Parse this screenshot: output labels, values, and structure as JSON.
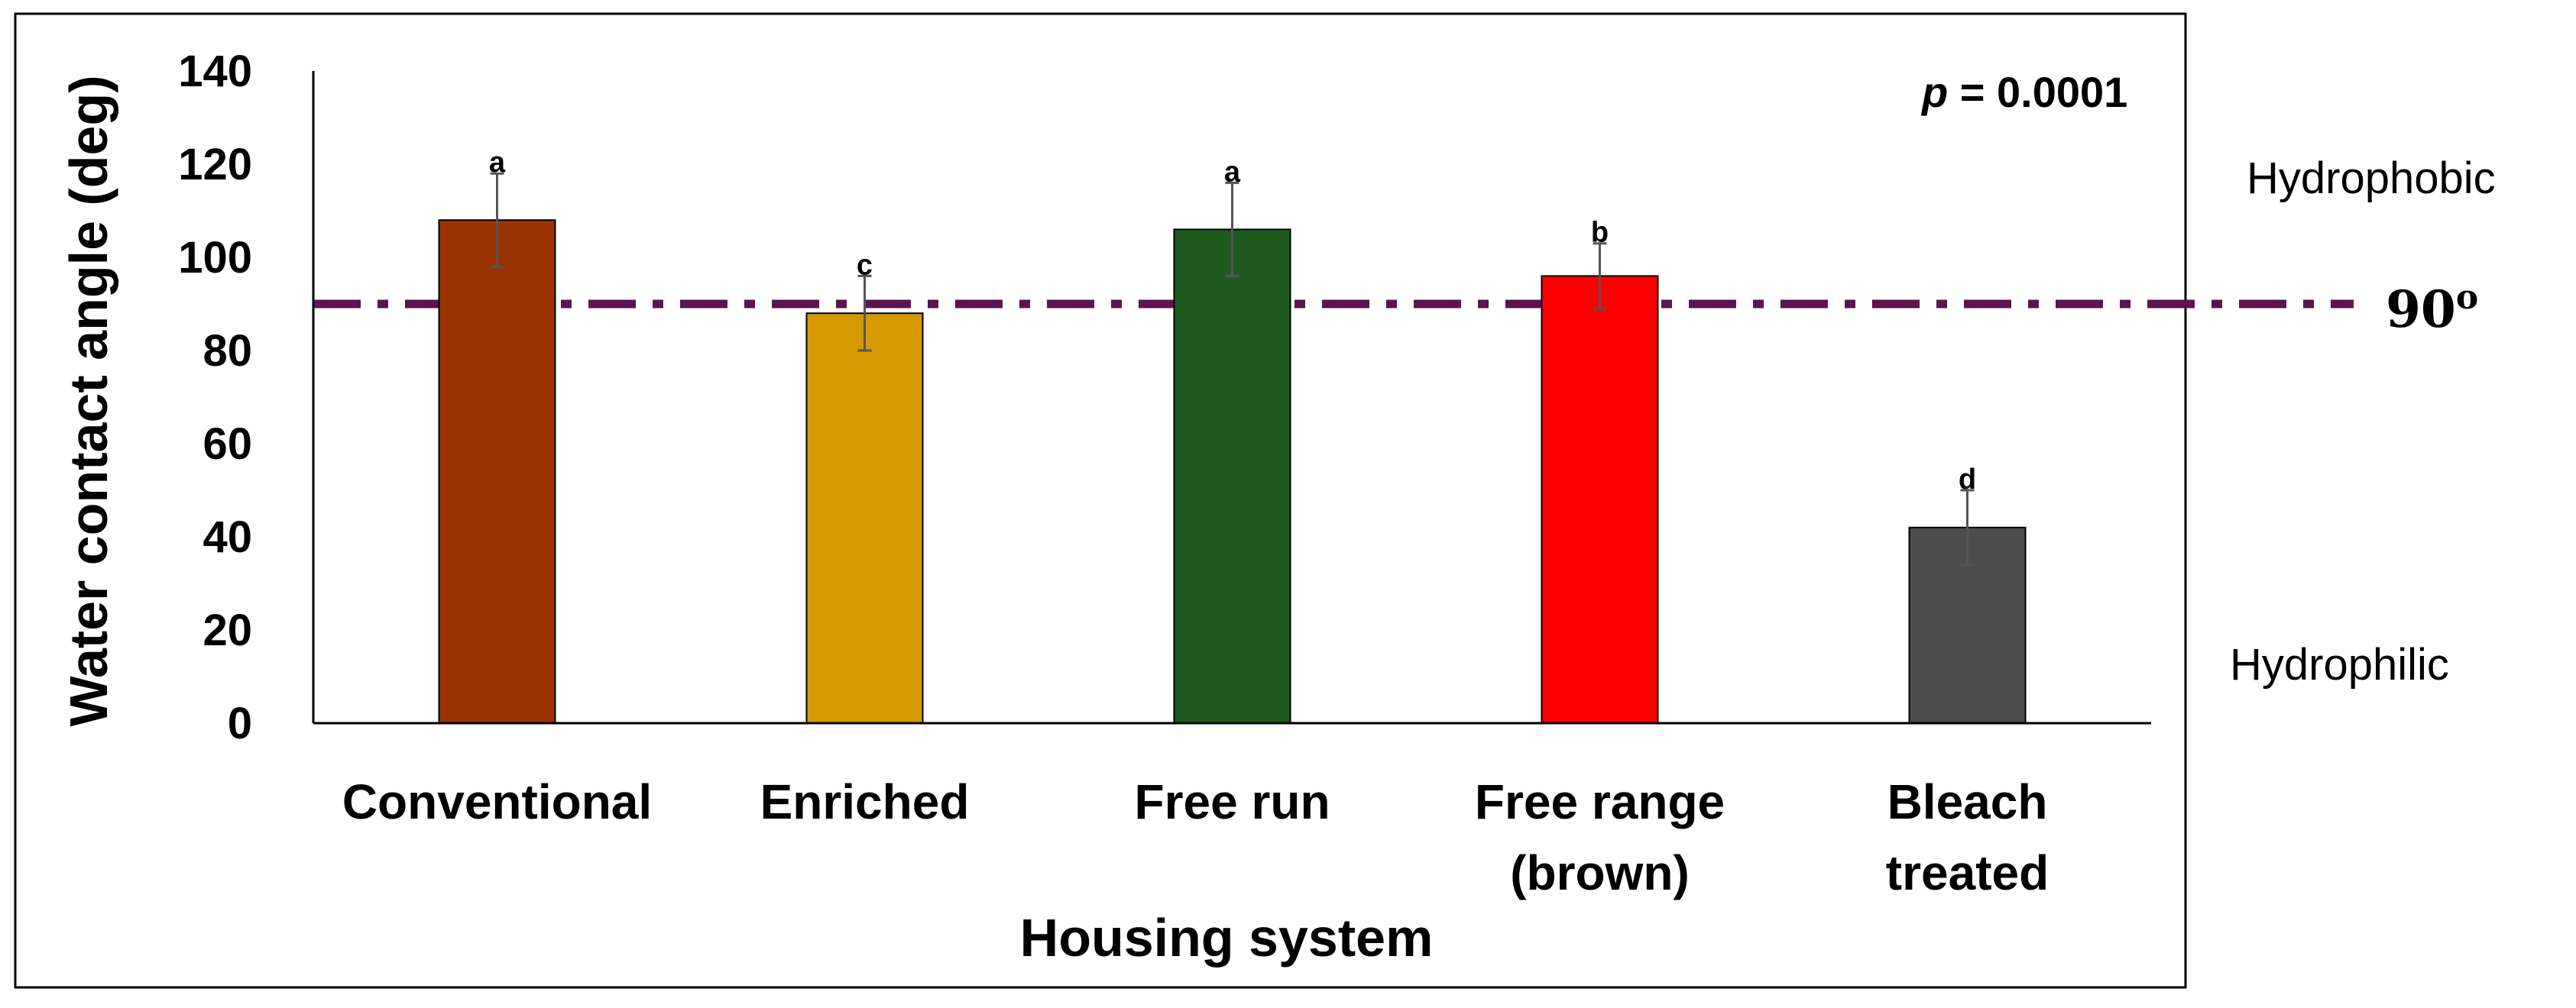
{
  "chart_data": {
    "type": "bar",
    "xlabel": "Housing system",
    "ylabel": "Water contact angle (deg)",
    "ylim": [
      0,
      140
    ],
    "yticks": [
      "0",
      "20",
      "40",
      "60",
      "80",
      "100",
      "120",
      "140"
    ],
    "categories": [
      [
        "Conventional"
      ],
      [
        "Enriched"
      ],
      [
        "Free run"
      ],
      [
        "Free range",
        "(brown)"
      ],
      [
        "Bleach",
        "treated"
      ]
    ],
    "values": [
      108,
      88,
      106,
      96,
      42
    ],
    "error": [
      10,
      8,
      10,
      7,
      8
    ],
    "significance_letters": [
      "a",
      "c",
      "a",
      "b",
      "d"
    ],
    "bar_colors": [
      "#993300",
      "#d49a00",
      "#1e5a1e",
      "#ff0000",
      "#4d4d4d"
    ],
    "grid": false,
    "reference_line": {
      "value": 90,
      "label": "90",
      "label_superscript": "o",
      "color": "#5a1450",
      "style": "dash-dot"
    },
    "annotations": {
      "p_symbol": "p",
      "p_text": " = 0.0001",
      "upper_region_label": "Hydrophobic",
      "lower_region_label": "Hydrophilic"
    }
  }
}
